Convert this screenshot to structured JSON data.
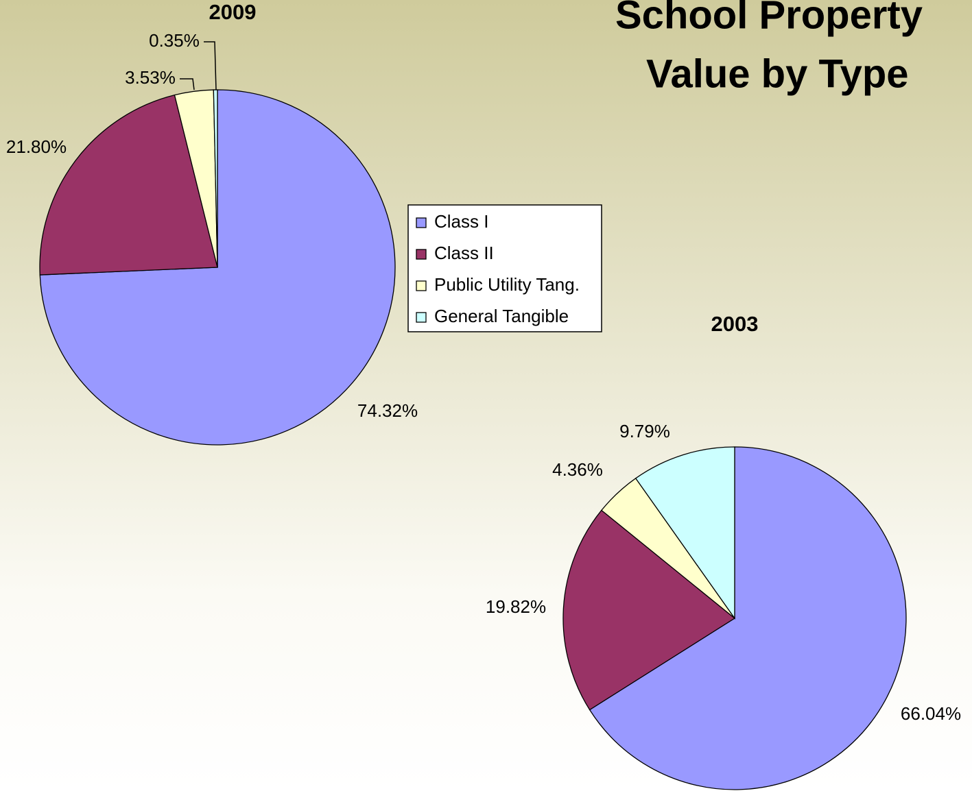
{
  "title": [
    "School Property",
    "Value by Type"
  ],
  "legend": {
    "categories": [
      "Class I",
      "Class II",
      "Public Utility Tang.",
      "General Tangible"
    ],
    "colors": [
      "#9999ff",
      "#993366",
      "#ffffcc",
      "#ccffff"
    ]
  },
  "chart_data": [
    {
      "type": "pie",
      "title": "2009",
      "values": [
        74.32,
        21.8,
        3.53,
        0.35
      ],
      "value_labels": [
        "74.32%",
        "21.80%",
        "3.53%",
        "0.35%"
      ]
    },
    {
      "type": "pie",
      "title": "2003",
      "values": [
        66.04,
        19.82,
        4.36,
        9.79
      ],
      "value_labels": [
        "66.04%",
        "19.82%",
        "4.36%",
        "9.79%"
      ]
    }
  ]
}
